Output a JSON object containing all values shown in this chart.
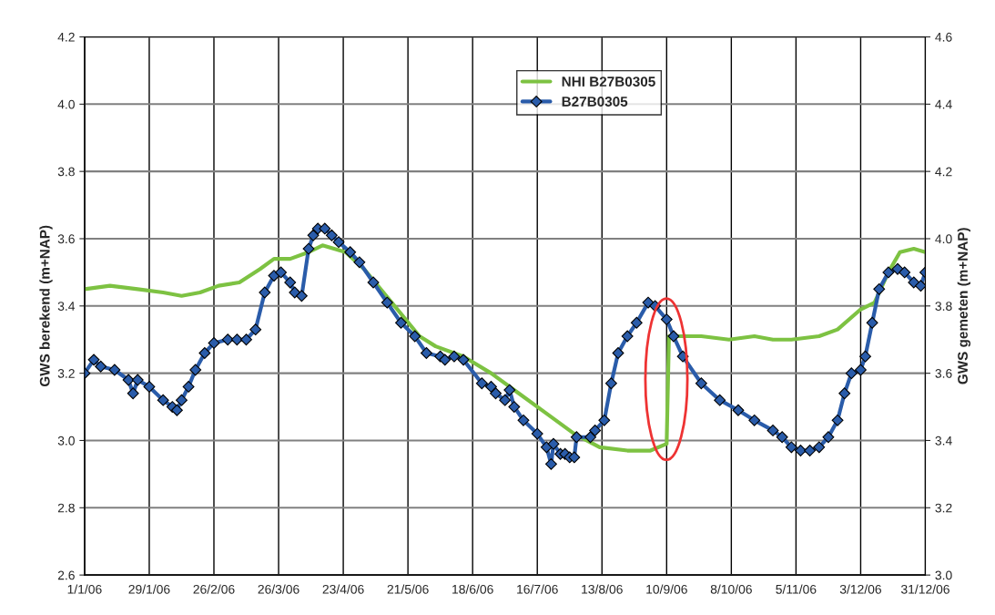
{
  "chart_data": {
    "type": "line",
    "xlabel": null,
    "ylabel": "GWS berekend (m+NAP)",
    "y2label": "GWS gemeten (m+NAP)",
    "xlim": [
      "2006-01-01",
      "2006-12-31"
    ],
    "xticks": [
      {
        "value": "2006-01-01",
        "label": "1/1/06"
      },
      {
        "value": "2006-01-29",
        "label": "29/1/06"
      },
      {
        "value": "2006-02-26",
        "label": "26/2/06"
      },
      {
        "value": "2006-03-26",
        "label": "26/3/06"
      },
      {
        "value": "2006-04-23",
        "label": "23/4/06"
      },
      {
        "value": "2006-05-21",
        "label": "21/5/06"
      },
      {
        "value": "2006-06-18",
        "label": "18/6/06"
      },
      {
        "value": "2006-07-16",
        "label": "16/7/06"
      },
      {
        "value": "2006-08-13",
        "label": "13/8/06"
      },
      {
        "value": "2006-09-10",
        "label": "10/9/06"
      },
      {
        "value": "2006-10-08",
        "label": "8/10/06"
      },
      {
        "value": "2006-11-05",
        "label": "5/11/06"
      },
      {
        "value": "2006-12-03",
        "label": "3/12/06"
      },
      {
        "value": "2006-12-31",
        "label": "31/12/06"
      }
    ],
    "ylim": [
      2.6,
      4.2
    ],
    "yticks": [
      {
        "value": 2.6,
        "label": "2.6"
      },
      {
        "value": 2.8,
        "label": "2.8"
      },
      {
        "value": 3.0,
        "label": "3.0"
      },
      {
        "value": 3.2,
        "label": "3.2"
      },
      {
        "value": 3.4,
        "label": "3.4"
      },
      {
        "value": 3.6,
        "label": "3.6"
      },
      {
        "value": 3.8,
        "label": "3.8"
      },
      {
        "value": 4.0,
        "label": "4.0"
      },
      {
        "value": 4.2,
        "label": "4.2"
      }
    ],
    "y2lim": [
      3.0,
      4.6
    ],
    "y2ticks": [
      {
        "value": 3.0,
        "label": "3.0"
      },
      {
        "value": 3.2,
        "label": "3.2"
      },
      {
        "value": 3.4,
        "label": "3.4"
      },
      {
        "value": 3.6,
        "label": "3.6"
      },
      {
        "value": 3.8,
        "label": "3.8"
      },
      {
        "value": 4.0,
        "label": "4.0"
      },
      {
        "value": 4.2,
        "label": "4.2"
      },
      {
        "value": 4.4,
        "label": "4.4"
      },
      {
        "value": 4.6,
        "label": "4.6"
      }
    ],
    "grid": true,
    "legend": "top",
    "series": [
      {
        "name": "NHI B27B0305",
        "color": "#7dc242",
        "marker": "none",
        "axis": "y",
        "x": [
          "2006-01-01",
          "2006-01-12",
          "2006-01-24",
          "2006-02-04",
          "2006-02-12",
          "2006-02-20",
          "2006-02-28",
          "2006-03-09",
          "2006-03-18",
          "2006-03-24",
          "2006-03-31",
          "2006-04-08",
          "2006-04-14",
          "2006-04-24",
          "2006-05-02",
          "2006-05-14",
          "2006-05-26",
          "2006-06-02",
          "2006-06-14",
          "2006-06-26",
          "2006-07-08",
          "2006-07-20",
          "2006-08-01",
          "2006-08-12",
          "2006-08-24",
          "2006-09-03",
          "2006-09-10",
          "2006-09-11",
          "2006-09-17",
          "2006-09-25",
          "2006-10-07",
          "2006-10-18",
          "2006-10-26",
          "2006-11-03",
          "2006-11-15",
          "2006-11-23",
          "2006-12-03",
          "2006-12-09",
          "2006-12-15",
          "2006-12-20",
          "2006-12-26",
          "2006-12-31"
        ],
        "values": [
          3.45,
          3.46,
          3.45,
          3.44,
          3.43,
          3.44,
          3.46,
          3.47,
          3.51,
          3.54,
          3.54,
          3.56,
          3.58,
          3.56,
          3.51,
          3.41,
          3.31,
          3.28,
          3.25,
          3.2,
          3.14,
          3.08,
          3.02,
          2.98,
          2.97,
          2.97,
          2.99,
          3.31,
          3.31,
          3.31,
          3.3,
          3.31,
          3.3,
          3.3,
          3.31,
          3.33,
          3.39,
          3.41,
          3.5,
          3.56,
          3.57,
          3.56
        ]
      },
      {
        "name": "B27B0305",
        "color": "#2a5caa",
        "marker": "diamond",
        "axis": "y2",
        "x": [
          "2006-01-01",
          "2006-01-05",
          "2006-01-08",
          "2006-01-14",
          "2006-01-20",
          "2006-01-22",
          "2006-01-24",
          "2006-01-29",
          "2006-02-04",
          "2006-02-08",
          "2006-02-10",
          "2006-02-12",
          "2006-02-15",
          "2006-02-18",
          "2006-02-22",
          "2006-02-26",
          "2006-03-04",
          "2006-03-08",
          "2006-03-12",
          "2006-03-16",
          "2006-03-20",
          "2006-03-24",
          "2006-03-27",
          "2006-03-31",
          "2006-04-02",
          "2006-04-05",
          "2006-04-08",
          "2006-04-10",
          "2006-04-12",
          "2006-04-15",
          "2006-04-18",
          "2006-04-21",
          "2006-04-26",
          "2006-04-30",
          "2006-05-06",
          "2006-05-12",
          "2006-05-18",
          "2006-05-24",
          "2006-05-29",
          "2006-06-04",
          "2006-06-06",
          "2006-06-10",
          "2006-06-14",
          "2006-06-22",
          "2006-06-26",
          "2006-06-28",
          "2006-07-02",
          "2006-07-04",
          "2006-07-06",
          "2006-07-10",
          "2006-07-16",
          "2006-07-20",
          "2006-07-22",
          "2006-07-23",
          "2006-07-26",
          "2006-07-28",
          "2006-07-30",
          "2006-08-01",
          "2006-08-02",
          "2006-08-08",
          "2006-08-10",
          "2006-08-14",
          "2006-08-17",
          "2006-08-20",
          "2006-08-24",
          "2006-08-28",
          "2006-09-02",
          "2006-09-05",
          "2006-09-10",
          "2006-09-13",
          "2006-09-17",
          "2006-09-25",
          "2006-10-03",
          "2006-10-11",
          "2006-10-18",
          "2006-10-26",
          "2006-10-30",
          "2006-11-03",
          "2006-11-07",
          "2006-11-11",
          "2006-11-15",
          "2006-11-19",
          "2006-11-23",
          "2006-11-26",
          "2006-11-29",
          "2006-12-03",
          "2006-12-05",
          "2006-12-08",
          "2006-12-11",
          "2006-12-15",
          "2006-12-19",
          "2006-12-22",
          "2006-12-26",
          "2006-12-29",
          "2006-12-31"
        ],
        "values": [
          3.6,
          3.64,
          3.62,
          3.61,
          3.58,
          3.54,
          3.58,
          3.56,
          3.52,
          3.5,
          3.49,
          3.52,
          3.56,
          3.61,
          3.66,
          3.69,
          3.7,
          3.7,
          3.7,
          3.73,
          3.84,
          3.89,
          3.9,
          3.87,
          3.84,
          3.83,
          3.97,
          4.01,
          4.03,
          4.03,
          4.01,
          3.99,
          3.96,
          3.93,
          3.87,
          3.81,
          3.75,
          3.71,
          3.66,
          3.65,
          3.64,
          3.65,
          3.64,
          3.57,
          3.56,
          3.54,
          3.52,
          3.55,
          3.5,
          3.46,
          3.42,
          3.38,
          3.33,
          3.39,
          3.36,
          3.36,
          3.35,
          3.35,
          3.41,
          3.41,
          3.43,
          3.46,
          3.57,
          3.66,
          3.71,
          3.75,
          3.81,
          3.8,
          3.76,
          3.71,
          3.65,
          3.57,
          3.52,
          3.49,
          3.46,
          3.43,
          3.41,
          3.38,
          3.37,
          3.37,
          3.38,
          3.41,
          3.46,
          3.54,
          3.6,
          3.61,
          3.65,
          3.75,
          3.85,
          3.9,
          3.91,
          3.9,
          3.87,
          3.86,
          3.9
        ]
      }
    ]
  }
}
